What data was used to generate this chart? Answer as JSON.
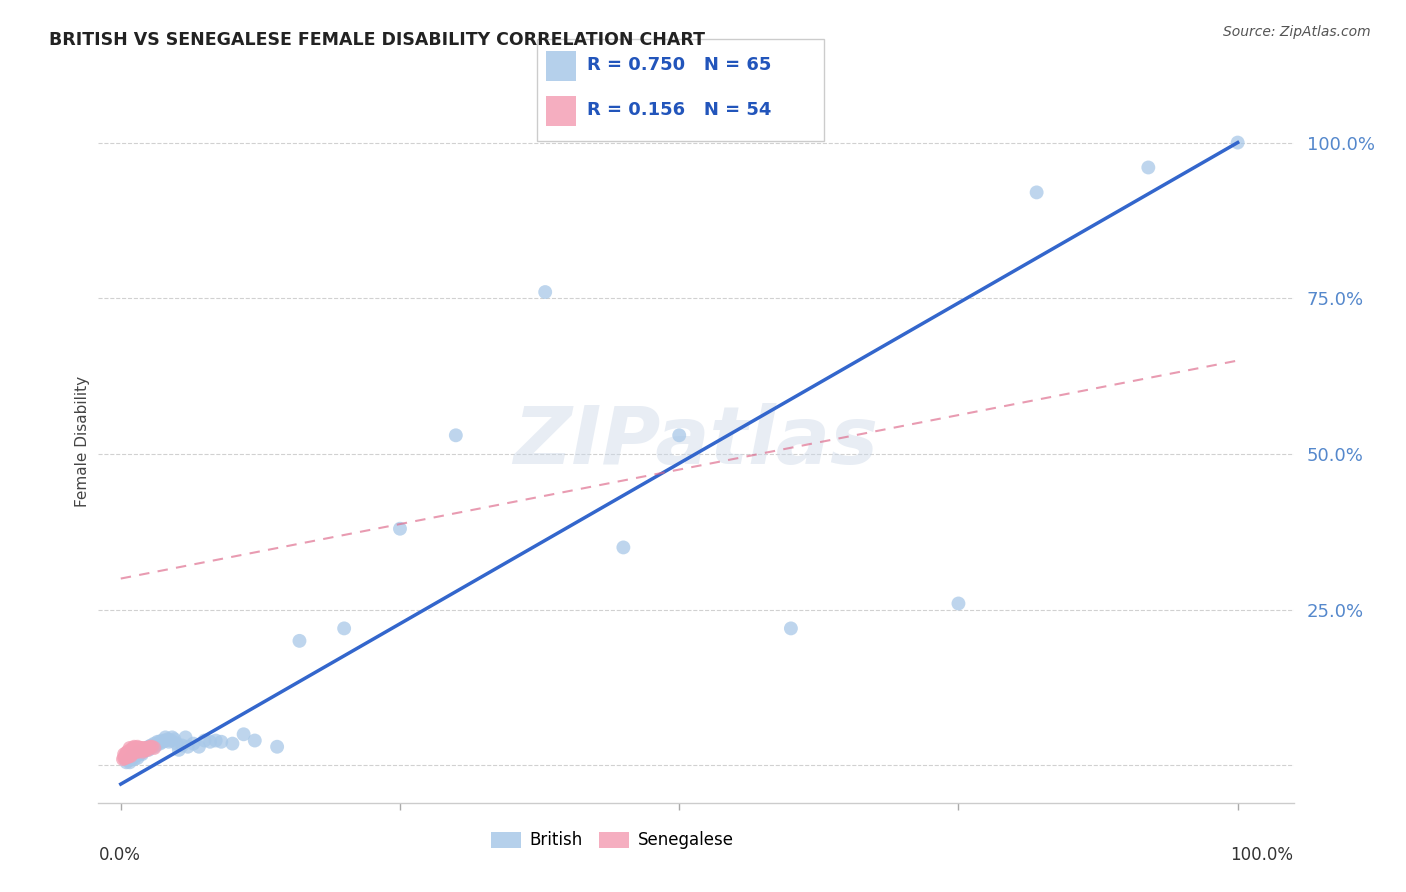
{
  "title": "BRITISH VS SENEGALESE FEMALE DISABILITY CORRELATION CHART",
  "source": "Source: ZipAtlas.com",
  "ylabel": "Female Disability",
  "british_color": "#a8c8e8",
  "senegalese_color": "#f4a0b5",
  "british_line_color": "#3366cc",
  "senegalese_line_color": "#dd6688",
  "british_R": 0.75,
  "british_N": 65,
  "senegalese_R": 0.156,
  "senegalese_N": 54,
  "watermark": "ZIPatlas",
  "british_x": [
    0.005,
    0.007,
    0.008,
    0.009,
    0.01,
    0.01,
    0.012,
    0.013,
    0.015,
    0.015,
    0.016,
    0.017,
    0.018,
    0.019,
    0.02,
    0.02,
    0.022,
    0.023,
    0.025,
    0.025,
    0.026,
    0.027,
    0.028,
    0.03,
    0.03,
    0.032,
    0.033,
    0.035,
    0.035,
    0.037,
    0.038,
    0.04,
    0.04,
    0.042,
    0.043,
    0.045,
    0.046,
    0.048,
    0.05,
    0.052,
    0.055,
    0.058,
    0.06,
    0.065,
    0.07,
    0.075,
    0.08,
    0.085,
    0.09,
    0.1,
    0.11,
    0.12,
    0.14,
    0.16,
    0.2,
    0.25,
    0.3,
    0.38,
    0.45,
    0.5,
    0.6,
    0.75,
    0.82,
    0.92,
    1.0
  ],
  "british_y": [
    0.005,
    0.008,
    0.005,
    0.012,
    0.01,
    0.015,
    0.01,
    0.015,
    0.012,
    0.02,
    0.018,
    0.022,
    0.02,
    0.018,
    0.022,
    0.025,
    0.025,
    0.028,
    0.025,
    0.03,
    0.028,
    0.032,
    0.03,
    0.03,
    0.035,
    0.033,
    0.038,
    0.038,
    0.035,
    0.04,
    0.038,
    0.04,
    0.045,
    0.042,
    0.038,
    0.04,
    0.045,
    0.042,
    0.035,
    0.025,
    0.032,
    0.045,
    0.03,
    0.035,
    0.03,
    0.04,
    0.038,
    0.04,
    0.038,
    0.035,
    0.05,
    0.04,
    0.03,
    0.2,
    0.22,
    0.38,
    0.53,
    0.76,
    0.35,
    0.53,
    0.22,
    0.26,
    0.92,
    0.96,
    1.0
  ],
  "senegalese_x": [
    0.002,
    0.003,
    0.003,
    0.004,
    0.004,
    0.005,
    0.005,
    0.006,
    0.006,
    0.006,
    0.007,
    0.007,
    0.008,
    0.008,
    0.008,
    0.009,
    0.009,
    0.009,
    0.01,
    0.01,
    0.01,
    0.011,
    0.011,
    0.012,
    0.012,
    0.012,
    0.013,
    0.013,
    0.014,
    0.014,
    0.014,
    0.015,
    0.015,
    0.015,
    0.016,
    0.016,
    0.016,
    0.017,
    0.017,
    0.018,
    0.018,
    0.019,
    0.019,
    0.02,
    0.02,
    0.021,
    0.022,
    0.022,
    0.023,
    0.024,
    0.025,
    0.026,
    0.028,
    0.03
  ],
  "senegalese_y": [
    0.01,
    0.012,
    0.018,
    0.012,
    0.015,
    0.015,
    0.02,
    0.013,
    0.018,
    0.022,
    0.015,
    0.02,
    0.018,
    0.022,
    0.028,
    0.015,
    0.02,
    0.025,
    0.02,
    0.025,
    0.018,
    0.022,
    0.028,
    0.022,
    0.025,
    0.03,
    0.025,
    0.028,
    0.025,
    0.028,
    0.022,
    0.028,
    0.025,
    0.03,
    0.025,
    0.028,
    0.022,
    0.028,
    0.025,
    0.025,
    0.028,
    0.025,
    0.028,
    0.022,
    0.025,
    0.025,
    0.025,
    0.028,
    0.028,
    0.025,
    0.028,
    0.03,
    0.03,
    0.028
  ],
  "ytick_positions": [
    0.0,
    0.25,
    0.5,
    0.75,
    1.0
  ],
  "ytick_labels": [
    "",
    "25.0%",
    "50.0%",
    "75.0%",
    "100.0%"
  ],
  "xtick_positions": [
    0.0,
    0.25,
    0.5,
    0.75,
    1.0
  ],
  "xmin": -0.02,
  "xmax": 1.05,
  "ymin": -0.06,
  "ymax": 1.1,
  "british_line_x": [
    0.0,
    1.0
  ],
  "british_line_y": [
    -0.03,
    1.0
  ],
  "senegalese_line_x": [
    0.0,
    1.0
  ],
  "senegalese_line_y": [
    0.3,
    0.65
  ]
}
